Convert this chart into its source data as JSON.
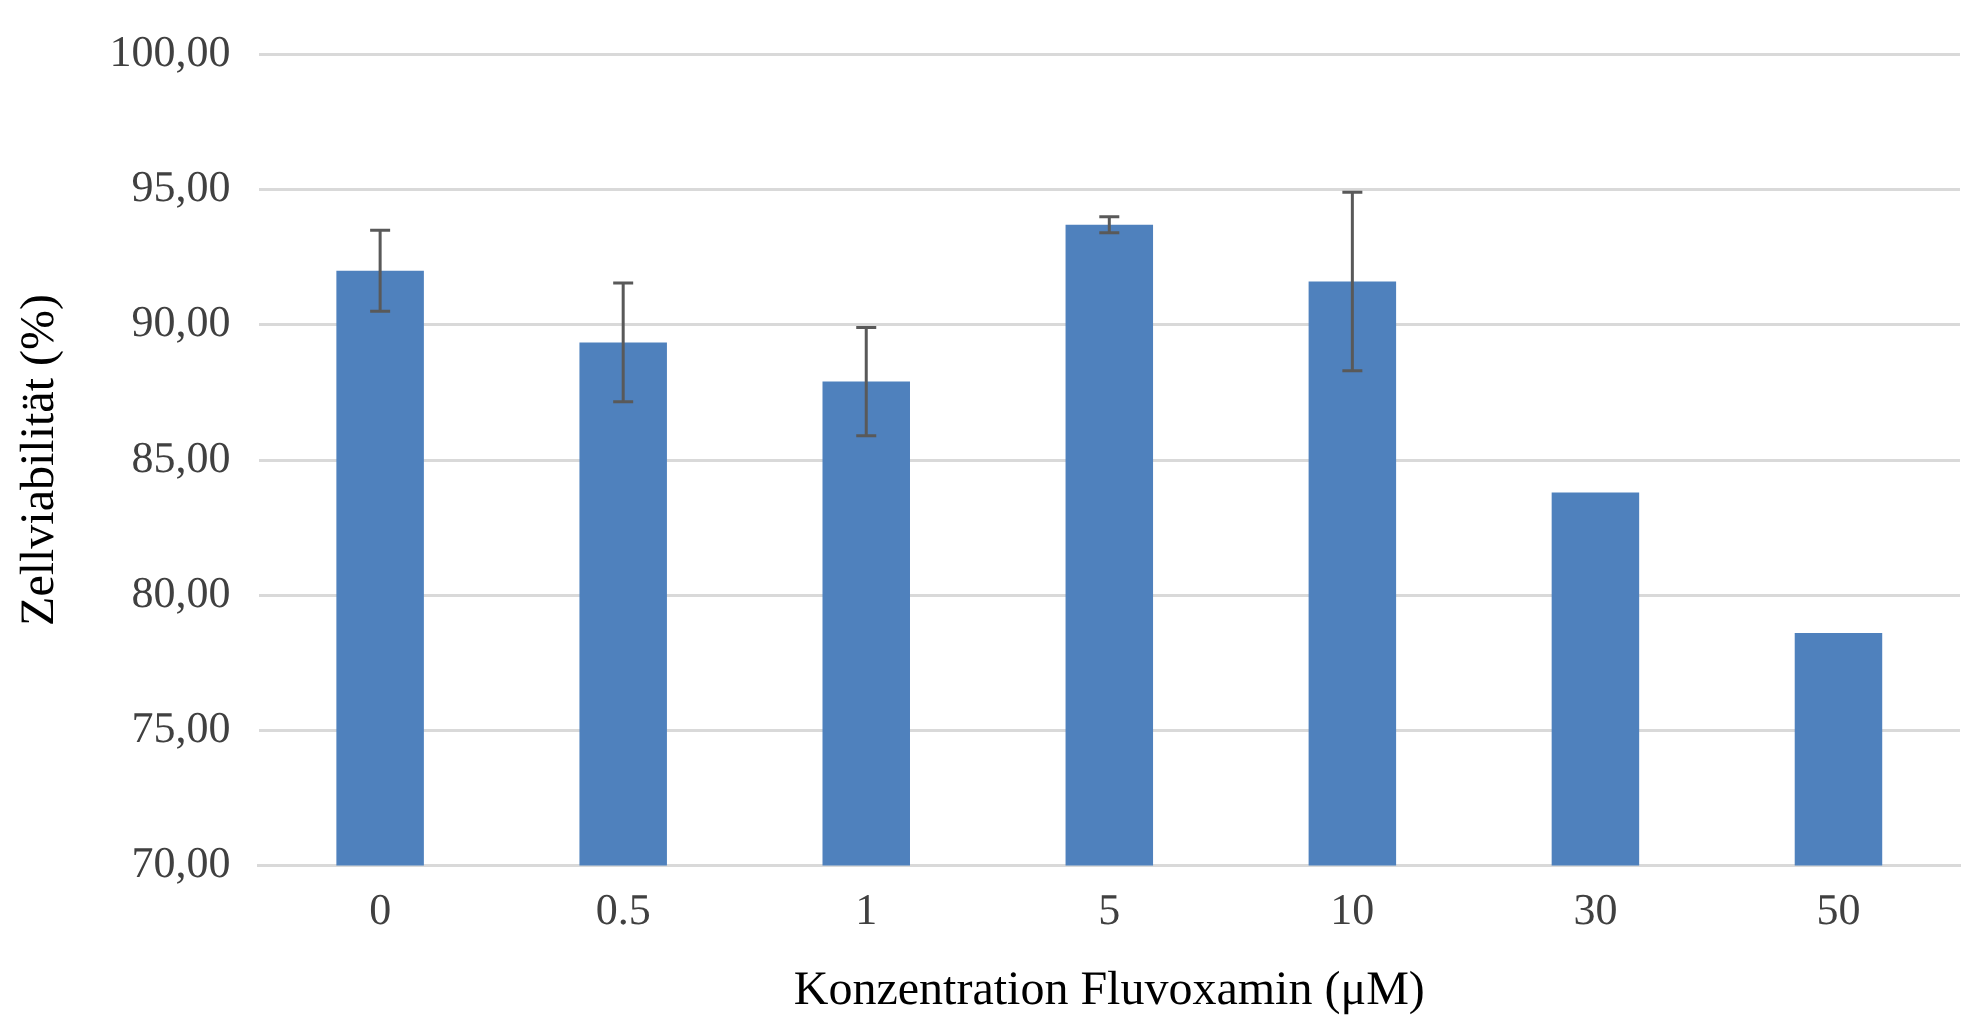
{
  "chart_data": {
    "type": "bar",
    "xlabel": "Konzentration Fluvoxamin (μM)",
    "ylabel": "Zellviabilität (%)",
    "categories": [
      "0",
      "0.5",
      "1",
      "5",
      "10",
      "30",
      "50"
    ],
    "values": [
      92.0,
      89.35,
      87.9,
      93.7,
      91.6,
      83.8,
      78.6
    ],
    "errors": [
      1.5,
      2.2,
      2.0,
      0.3,
      3.3,
      null,
      null
    ],
    "color": "#4f81bd",
    "ylim": [
      70,
      100
    ],
    "yticks": [
      {
        "value": 70,
        "label": "70,00"
      },
      {
        "value": 75,
        "label": "75,00"
      },
      {
        "value": 80,
        "label": "80,00"
      },
      {
        "value": 85,
        "label": "85,00"
      },
      {
        "value": 90,
        "label": "90,00"
      },
      {
        "value": 95,
        "label": "95,00"
      },
      {
        "value": 100,
        "label": "100,00"
      }
    ],
    "grid": "y",
    "legend": false
  }
}
